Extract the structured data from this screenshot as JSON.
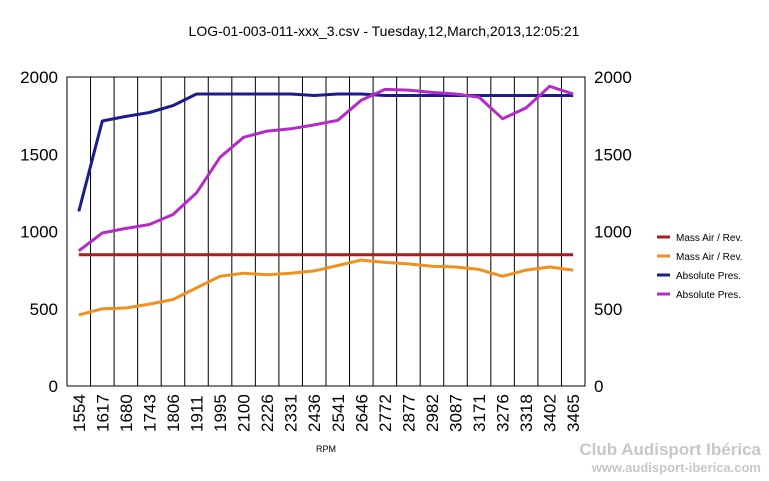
{
  "chart_data": {
    "type": "line",
    "title": "LOG-01-003-011-xxx_3.csv - Tuesday,12,March,2013,12:05:21",
    "xlabel": "RPM",
    "ylabel": "",
    "ylim": [
      0,
      2000
    ],
    "yticks": [
      "0",
      "500",
      "1000",
      "1500",
      "2000"
    ],
    "y2ticks": [
      "0",
      "500",
      "1000",
      "1500",
      "2000"
    ],
    "grid": "vertical",
    "legend_position": "right",
    "x": [
      1554,
      1617,
      1680,
      1743,
      1806,
      1911,
      1995,
      2100,
      2226,
      2331,
      2436,
      2541,
      2646,
      2772,
      2877,
      2982,
      3087,
      3171,
      3276,
      3318,
      3402,
      3465
    ],
    "xtick_labels": [
      "1554",
      "1617",
      "1680",
      "1743",
      "1806",
      "1911",
      "1995",
      "2100",
      "2226",
      "2331",
      "2436",
      "2541",
      "2646",
      "2772",
      "2877",
      "2982",
      "3087",
      "3171",
      "3276",
      "3318",
      "3402",
      "3465"
    ],
    "series": [
      {
        "name": "Mass Air / Rev.",
        "color": "#b01c1c",
        "values": [
          850,
          850,
          850,
          850,
          850,
          850,
          850,
          850,
          850,
          850,
          850,
          850,
          850,
          850,
          850,
          850,
          850,
          850,
          850,
          850,
          850,
          850
        ]
      },
      {
        "name": "Mass Air / Rev.",
        "color": "#f0901e",
        "values": [
          460,
          500,
          505,
          530,
          560,
          635,
          710,
          730,
          720,
          730,
          745,
          780,
          815,
          800,
          790,
          775,
          770,
          755,
          710,
          750,
          770,
          750
        ]
      },
      {
        "name": "Absolute Pres.",
        "color": "#1c1c8e",
        "values": [
          1130,
          1715,
          1745,
          1770,
          1815,
          1890,
          1890,
          1890,
          1890,
          1890,
          1880,
          1890,
          1890,
          1880,
          1880,
          1880,
          1880,
          1880,
          1880,
          1880,
          1880,
          1880
        ]
      },
      {
        "name": "Absolute Pres.",
        "color": "#b42bc8",
        "values": [
          875,
          990,
          1020,
          1045,
          1110,
          1250,
          1480,
          1610,
          1650,
          1665,
          1690,
          1720,
          1850,
          1920,
          1915,
          1900,
          1890,
          1870,
          1730,
          1800,
          1940,
          1890
        ]
      }
    ]
  },
  "watermark": {
    "title": "Club Audisport Ibérica",
    "url": "www.audisport-iberica.com"
  }
}
